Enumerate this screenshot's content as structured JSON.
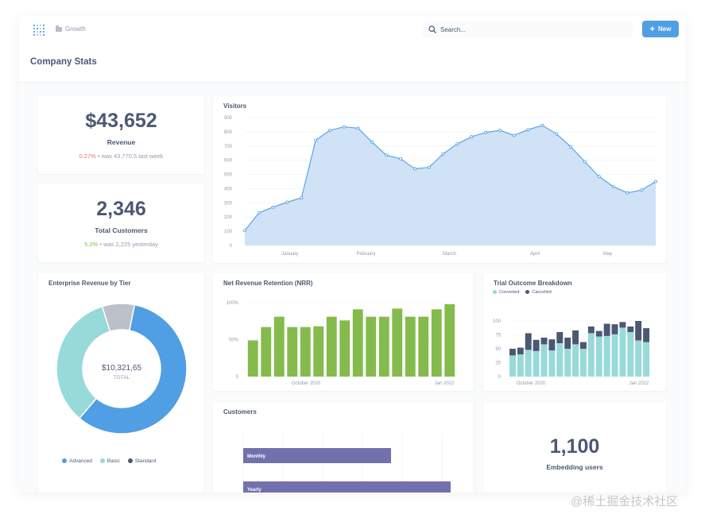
{
  "header": {
    "breadcrumb": "Growth",
    "search_placeholder": "Search...",
    "new_button": "New",
    "page_title": "Company Stats"
  },
  "revenue": {
    "value": "$43,652",
    "label": "Revenue",
    "change": "0.27%",
    "comparison": "was 43,770.5 last week",
    "bullet": "•"
  },
  "customers_stat": {
    "value": "2,346",
    "label": "Total Customers",
    "change": "5.2%",
    "comparison": "was 2,225 yesterday",
    "bullet": "•"
  },
  "embedding": {
    "value": "1,100",
    "label": "Embedding users"
  },
  "watermark": "@稀土掘金技术社区",
  "colors": {
    "accent": "#509ee3",
    "green": "#84bb4c",
    "teal": "#98d9d9",
    "navy": "#4c5773",
    "purple": "#7172ad",
    "gray": "#bcc0c7",
    "area": "#cfe2f6",
    "negative": "#ed6e6e"
  },
  "chart_data": [
    {
      "type": "area",
      "title": "Visitors",
      "ylim": [
        0,
        900
      ],
      "yticks": [
        "0",
        "100",
        "200",
        "300",
        "400",
        "500",
        "600",
        "700",
        "800",
        "900"
      ],
      "xticks": [
        "January",
        "February",
        "March",
        "April",
        "May"
      ],
      "values": [
        105,
        230,
        270,
        305,
        335,
        740,
        810,
        835,
        825,
        725,
        635,
        610,
        540,
        550,
        645,
        715,
        765,
        795,
        810,
        775,
        815,
        845,
        785,
        695,
        590,
        485,
        415,
        370,
        390,
        450
      ]
    },
    {
      "type": "bar",
      "title": "Net Revenue Retention (NRR)",
      "ylim": [
        0,
        1
      ],
      "yticks": [
        "0",
        "50%",
        "100%"
      ],
      "xticks": [
        "October 2020",
        "Jan 2022"
      ],
      "values": [
        0.49,
        0.67,
        0.81,
        0.67,
        0.67,
        0.68,
        0.81,
        0.76,
        0.91,
        0.81,
        0.81,
        0.92,
        0.81,
        0.81,
        0.91,
        0.98
      ]
    },
    {
      "type": "bar",
      "title": "Trial Outcome Breakdown",
      "stacked": true,
      "ylim": [
        0,
        100
      ],
      "yticks": [
        "0",
        "25",
        "50",
        "75",
        "100"
      ],
      "xticks": [
        "October 2020",
        "Jan 2022"
      ],
      "series": [
        {
          "name": "Converted",
          "values": [
            38,
            40,
            48,
            46,
            58,
            47,
            60,
            50,
            58,
            50,
            78,
            72,
            73,
            76,
            88,
            80,
            65,
            62
          ]
        },
        {
          "name": "Cancelled",
          "values": [
            12,
            12,
            30,
            20,
            12,
            20,
            20,
            20,
            25,
            12,
            12,
            10,
            22,
            18,
            10,
            10,
            35,
            25
          ]
        }
      ]
    },
    {
      "type": "pie",
      "title": "Enterprise Revenue by Tier",
      "center_value": "$10,321,65",
      "center_label": "TOTAL",
      "slices": [
        {
          "name": "Advanced",
          "value": 58
        },
        {
          "name": "Basic",
          "value": 34
        },
        {
          "name": "Standard",
          "value": 8
        }
      ]
    },
    {
      "type": "bar",
      "orientation": "horizontal",
      "title": "Customers",
      "categories": [
        "Monthly",
        "Yearly"
      ],
      "values": [
        62,
        87
      ],
      "xlim": [
        0,
        100
      ]
    }
  ]
}
